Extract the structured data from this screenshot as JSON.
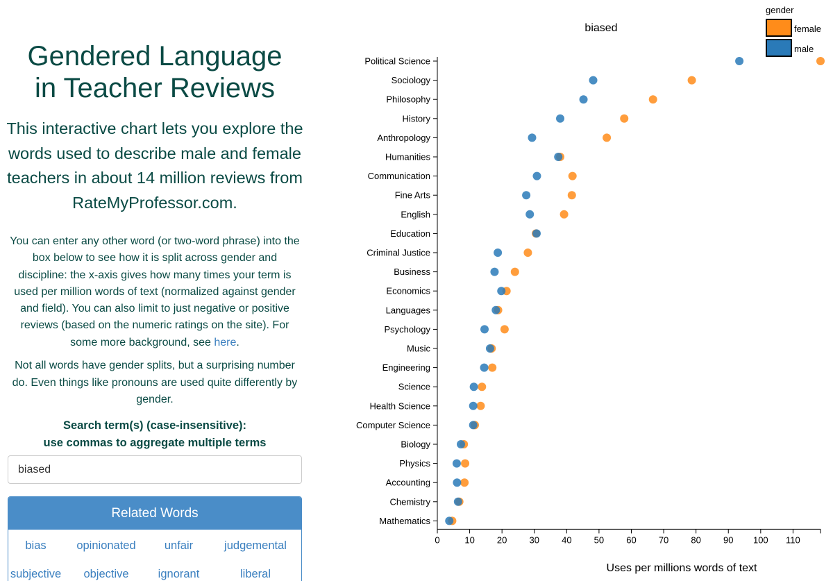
{
  "page": {
    "title_line1": "Gendered Language",
    "title_line2": "in Teacher Reviews",
    "intro": "This interactive chart lets you explore the words used to describe male and female teachers in about 14 million reviews from RateMyProfessor.com.",
    "description": "You can enter any other word (or two-word phrase) into the box below to see how it is split across gender and discipline: the x-axis gives how many times your term is used per million words of text (normalized against gender and field). You can also limit to just negative or positive reviews (based on the numeric ratings on the site). For some more background, see",
    "description_link": "here",
    "description_end": ".",
    "note": "Not all words have gender splits, but a surprising number do. Even things like pronouns are used quite differently by gender.",
    "search_label_line1": "Search term(s) (case-insensitive):",
    "search_label_line2": "use commas to aggregate multiple terms",
    "search_value": "biased",
    "related_title": "Related Words",
    "related_words": [
      "bias",
      "opinionated",
      "unfair",
      "judgemental",
      "subjective",
      "objective",
      "ignorant",
      "liberal"
    ],
    "colors": {
      "title": "#0a4a44",
      "link": "#3a7fbf",
      "panel": "#4a8dc8"
    }
  },
  "chart_data": {
    "type": "scatter",
    "title": "biased",
    "xlabel": "Uses per millions words of text",
    "ylabel": "",
    "xlim": [
      0,
      118.5
    ],
    "xticks": [
      0,
      10,
      20,
      30,
      40,
      50,
      60,
      70,
      80,
      90,
      100,
      110
    ],
    "legend": {
      "title": "gender",
      "position": "top-right"
    },
    "categories": [
      "Political Science",
      "Sociology",
      "Philosophy",
      "History",
      "Anthropology",
      "Humanities",
      "Communication",
      "Fine Arts",
      "English",
      "Education",
      "Criminal Justice",
      "Business",
      "Economics",
      "Languages",
      "Psychology",
      "Music",
      "Engineering",
      "Science",
      "Health Science",
      "Computer Science",
      "Biology",
      "Physics",
      "Accounting",
      "Chemistry",
      "Mathematics"
    ],
    "series": [
      {
        "name": "female",
        "color": "#ff8c1a",
        "values": [
          118.5,
          78.7,
          66.7,
          57.8,
          52.4,
          38.0,
          41.8,
          41.6,
          39.2,
          30.5,
          28.0,
          24.0,
          21.4,
          18.8,
          20.8,
          16.8,
          17.0,
          13.8,
          13.4,
          11.6,
          8.2,
          8.6,
          8.4,
          6.8,
          4.6
        ]
      },
      {
        "name": "male",
        "color": "#2a7ab8",
        "values": [
          93.4,
          48.2,
          45.2,
          38.0,
          29.3,
          37.4,
          30.8,
          27.5,
          28.6,
          30.7,
          18.7,
          17.7,
          19.8,
          18.1,
          14.6,
          16.3,
          14.5,
          11.3,
          11.1,
          11.1,
          7.3,
          6.0,
          6.1,
          6.4,
          3.7
        ]
      }
    ]
  }
}
